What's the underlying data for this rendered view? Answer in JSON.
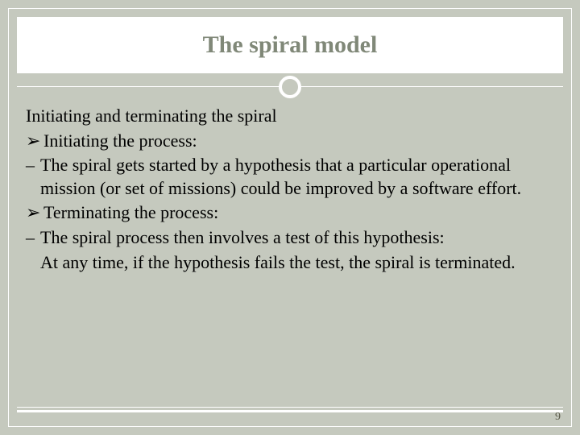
{
  "title": "The spiral model",
  "section_header": "Initiating and terminating the spiral",
  "bullets": [
    {
      "marker": "➢",
      "text": "Initiating the process:"
    }
  ],
  "dash1": {
    "marker": "–",
    "text": "The spiral gets started by a hypothesis that a particular operational mission (or set of missions) could be improved by a software effort."
  },
  "bullets2": [
    {
      "marker": "➢",
      "text": "Terminating the process:"
    }
  ],
  "dash2": {
    "marker": "–",
    "text": "The spiral process then involves a test of this hypothesis:"
  },
  "indent_line": "At any time, if the hypothesis fails the test, the spiral is terminated.",
  "page_number": "9"
}
